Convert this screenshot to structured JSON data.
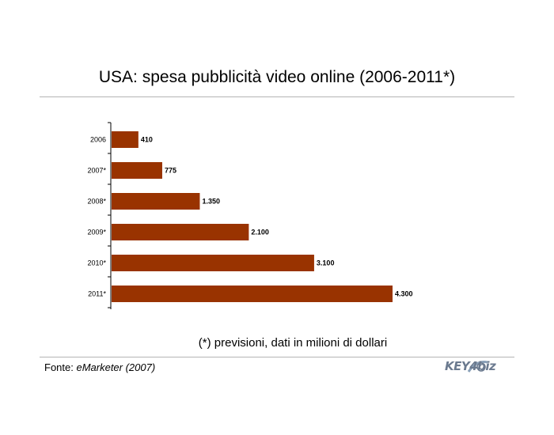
{
  "title": "USA: spesa pubblicità video online (2006-2011*)",
  "note": "(*) previsioni, dati in milioni di dollari",
  "source": {
    "prefix": "Fonte: ",
    "name": "eMarketer (2007)"
  },
  "logo": {
    "text": "KEY4biz"
  },
  "colors": {
    "bar": "#993300",
    "rule": "#b4b4b4"
  },
  "chart_data": {
    "type": "bar",
    "orientation": "horizontal",
    "categories": [
      "2006",
      "2007*",
      "2008*",
      "2009*",
      "2010*",
      "2011*"
    ],
    "values": [
      410,
      775,
      1350,
      2100,
      3100,
      4300
    ],
    "data_labels": [
      "410",
      "775",
      "1.350",
      "2.100",
      "3.100",
      "4.300"
    ],
    "xlim": [
      0,
      4300
    ],
    "grid": false,
    "legend": "none"
  }
}
